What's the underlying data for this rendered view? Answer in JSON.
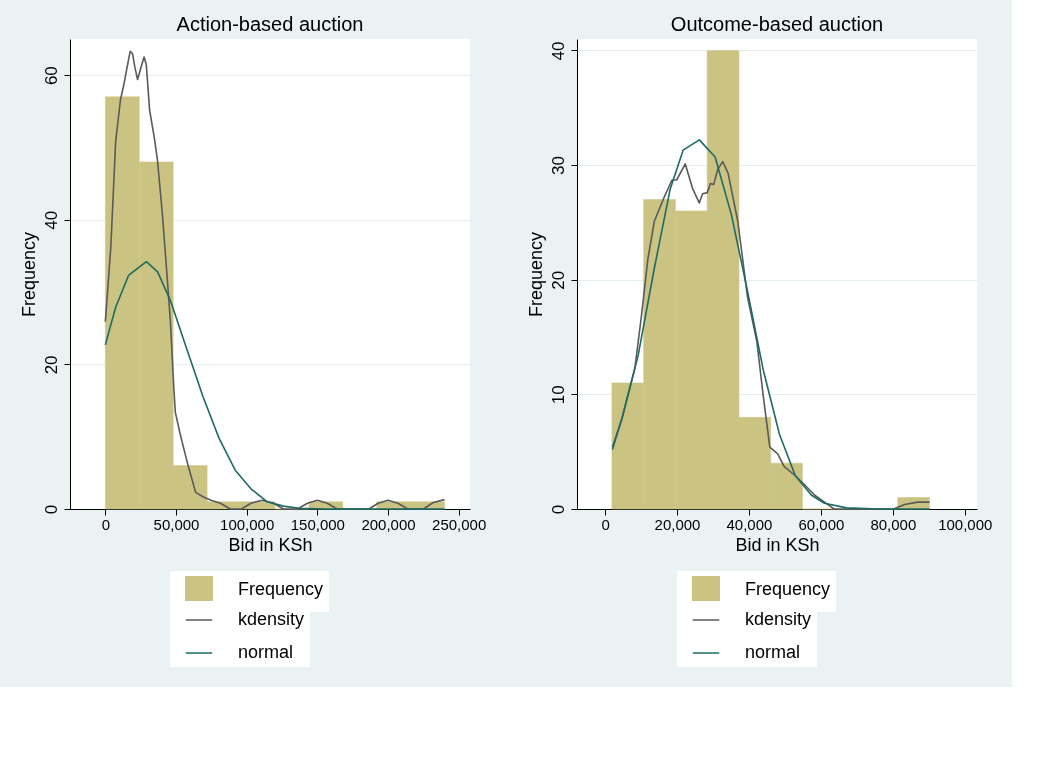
{
  "chart_data": [
    {
      "type": "histogram",
      "title": "Action-based auction",
      "xlabel": "Bid in KSh",
      "ylabel": "Frequency",
      "bins": [
        0,
        24000,
        48000,
        72000,
        96000,
        120000,
        144000,
        168000,
        192000,
        216000,
        240000
      ],
      "series": [
        {
          "name": "Frequency",
          "type": "histogram",
          "color": "#cbc382",
          "values": [
            57,
            48,
            6,
            1,
            1,
            0,
            1,
            0,
            1,
            1
          ]
        },
        {
          "name": "kdensity",
          "type": "line",
          "color": "#5a5a5a",
          "x": [
            0,
            3900,
            7300,
            10700,
            13000,
            15300,
            17600,
            19200,
            21000,
            22800,
            25100,
            27400,
            29000,
            31300,
            34700,
            36900,
            40400,
            43800,
            46100,
            48400,
            49500,
            53000,
            58700,
            63900,
            69000,
            74700,
            81500,
            88400,
            96300,
            103000,
            111000,
            119000,
            126000,
            136000,
            143000,
            150000,
            157000,
            164000,
            186500,
            193000,
            200000,
            207000,
            214000,
            225000,
            232000,
            240000
          ],
          "values": [
            25.9,
            36.3,
            50.8,
            56.6,
            58.6,
            61,
            63.3,
            63,
            61,
            59.4,
            61,
            62.5,
            61.4,
            55.2,
            51.3,
            48.2,
            40.7,
            31.9,
            25.7,
            16.9,
            13.4,
            10.3,
            5.9,
            2.3,
            1.7,
            1.2,
            0.8,
            0,
            0,
            0.8,
            1.2,
            0.8,
            0,
            0,
            0.8,
            1.2,
            0.8,
            0,
            0,
            0.8,
            1.2,
            0.8,
            0,
            0,
            0.9,
            1.3
          ]
        },
        {
          "name": "normal",
          "type": "line",
          "color": "#1d6b64",
          "x": [
            0,
            7300,
            16400,
            29000,
            37000,
            46100,
            57500,
            69000,
            80400,
            91800,
            103000,
            114600,
            126000,
            137000,
            155700,
            240000
          ],
          "values": [
            22.7,
            27.9,
            32.3,
            34.2,
            32.8,
            28.8,
            22.2,
            15.6,
            9.8,
            5.4,
            2.8,
            1.0,
            0.4,
            0.1,
            0,
            0
          ]
        }
      ],
      "xlim": [
        -25000,
        258000
      ],
      "ylim": [
        0,
        65
      ],
      "xticks": [
        0,
        {
          "value": 50000,
          "label": "50,000"
        },
        {
          "value": 100000,
          "label": "100,000"
        },
        {
          "value": 150000,
          "label": "150,000"
        },
        {
          "value": 200000,
          "label": "200,000"
        },
        {
          "value": 250000,
          "label": "250,000"
        }
      ],
      "yticks": [
        0,
        20,
        40,
        60
      ],
      "grid": "y",
      "legend": "bottom"
    },
    {
      "type": "histogram",
      "title": "Outcome-based auction",
      "xlabel": "Bid in KSh",
      "ylabel": "Frequency",
      "bins": [
        1900,
        10730,
        19560,
        28390,
        37220,
        46050,
        54880,
        63710,
        72540,
        81370,
        90200
      ],
      "series": [
        {
          "name": "Frequency",
          "type": "histogram",
          "color": "#cbc382",
          "values": [
            11,
            27,
            26,
            40,
            8,
            4,
            0,
            0,
            0,
            1
          ]
        },
        {
          "name": "kdensity",
          "type": "line",
          "color": "#5a5a5a",
          "x": [
            2050,
            4700,
            8300,
            10100,
            11900,
            13700,
            16300,
            18600,
            19900,
            22300,
            24400,
            26200,
            27100,
            28400,
            29300,
            30200,
            31300,
            32700,
            34200,
            36900,
            39600,
            42200,
            44000,
            45800,
            48000,
            49800,
            52900,
            55200,
            58300,
            61000,
            63700,
            80200,
            83300,
            86900,
            90200
          ],
          "values": [
            5.4,
            7.9,
            12.3,
            16.8,
            21.8,
            25.1,
            27.1,
            28.7,
            28.7,
            30.1,
            27.9,
            26.7,
            27.5,
            27.6,
            28.4,
            28.3,
            29.6,
            30.3,
            29.3,
            25.1,
            18.5,
            14.6,
            9.8,
            5.4,
            4.8,
            3.7,
            2.9,
            2.2,
            1.2,
            0.6,
            0,
            0,
            0.4,
            0.6,
            0.6
          ]
        },
        {
          "name": "normal",
          "type": "line",
          "color": "#1d6b64",
          "x": [
            2050,
            4700,
            9200,
            13700,
            18100,
            21700,
            26200,
            30600,
            35100,
            39600,
            44000,
            48500,
            52900,
            57400,
            61000,
            67200,
            76200,
            90200
          ],
          "values": [
            5.2,
            7.9,
            13.4,
            21,
            27.9,
            31.3,
            32.2,
            30.7,
            25.7,
            19,
            12.1,
            6.5,
            2.9,
            1.2,
            0.5,
            0.1,
            0,
            0
          ]
        }
      ],
      "xlim": [
        -7800,
        103400
      ],
      "ylim": [
        0,
        41
      ],
      "xticks": [
        0,
        {
          "value": 20000,
          "label": "20,000"
        },
        {
          "value": 40000,
          "label": "40,000"
        },
        {
          "value": 60000,
          "label": "60,000"
        },
        {
          "value": 80000,
          "label": "80,000"
        },
        {
          "value": 100000,
          "label": "100,000"
        }
      ],
      "yticks": [
        0,
        10,
        20,
        30,
        40
      ],
      "grid": "y",
      "legend": "bottom"
    }
  ]
}
